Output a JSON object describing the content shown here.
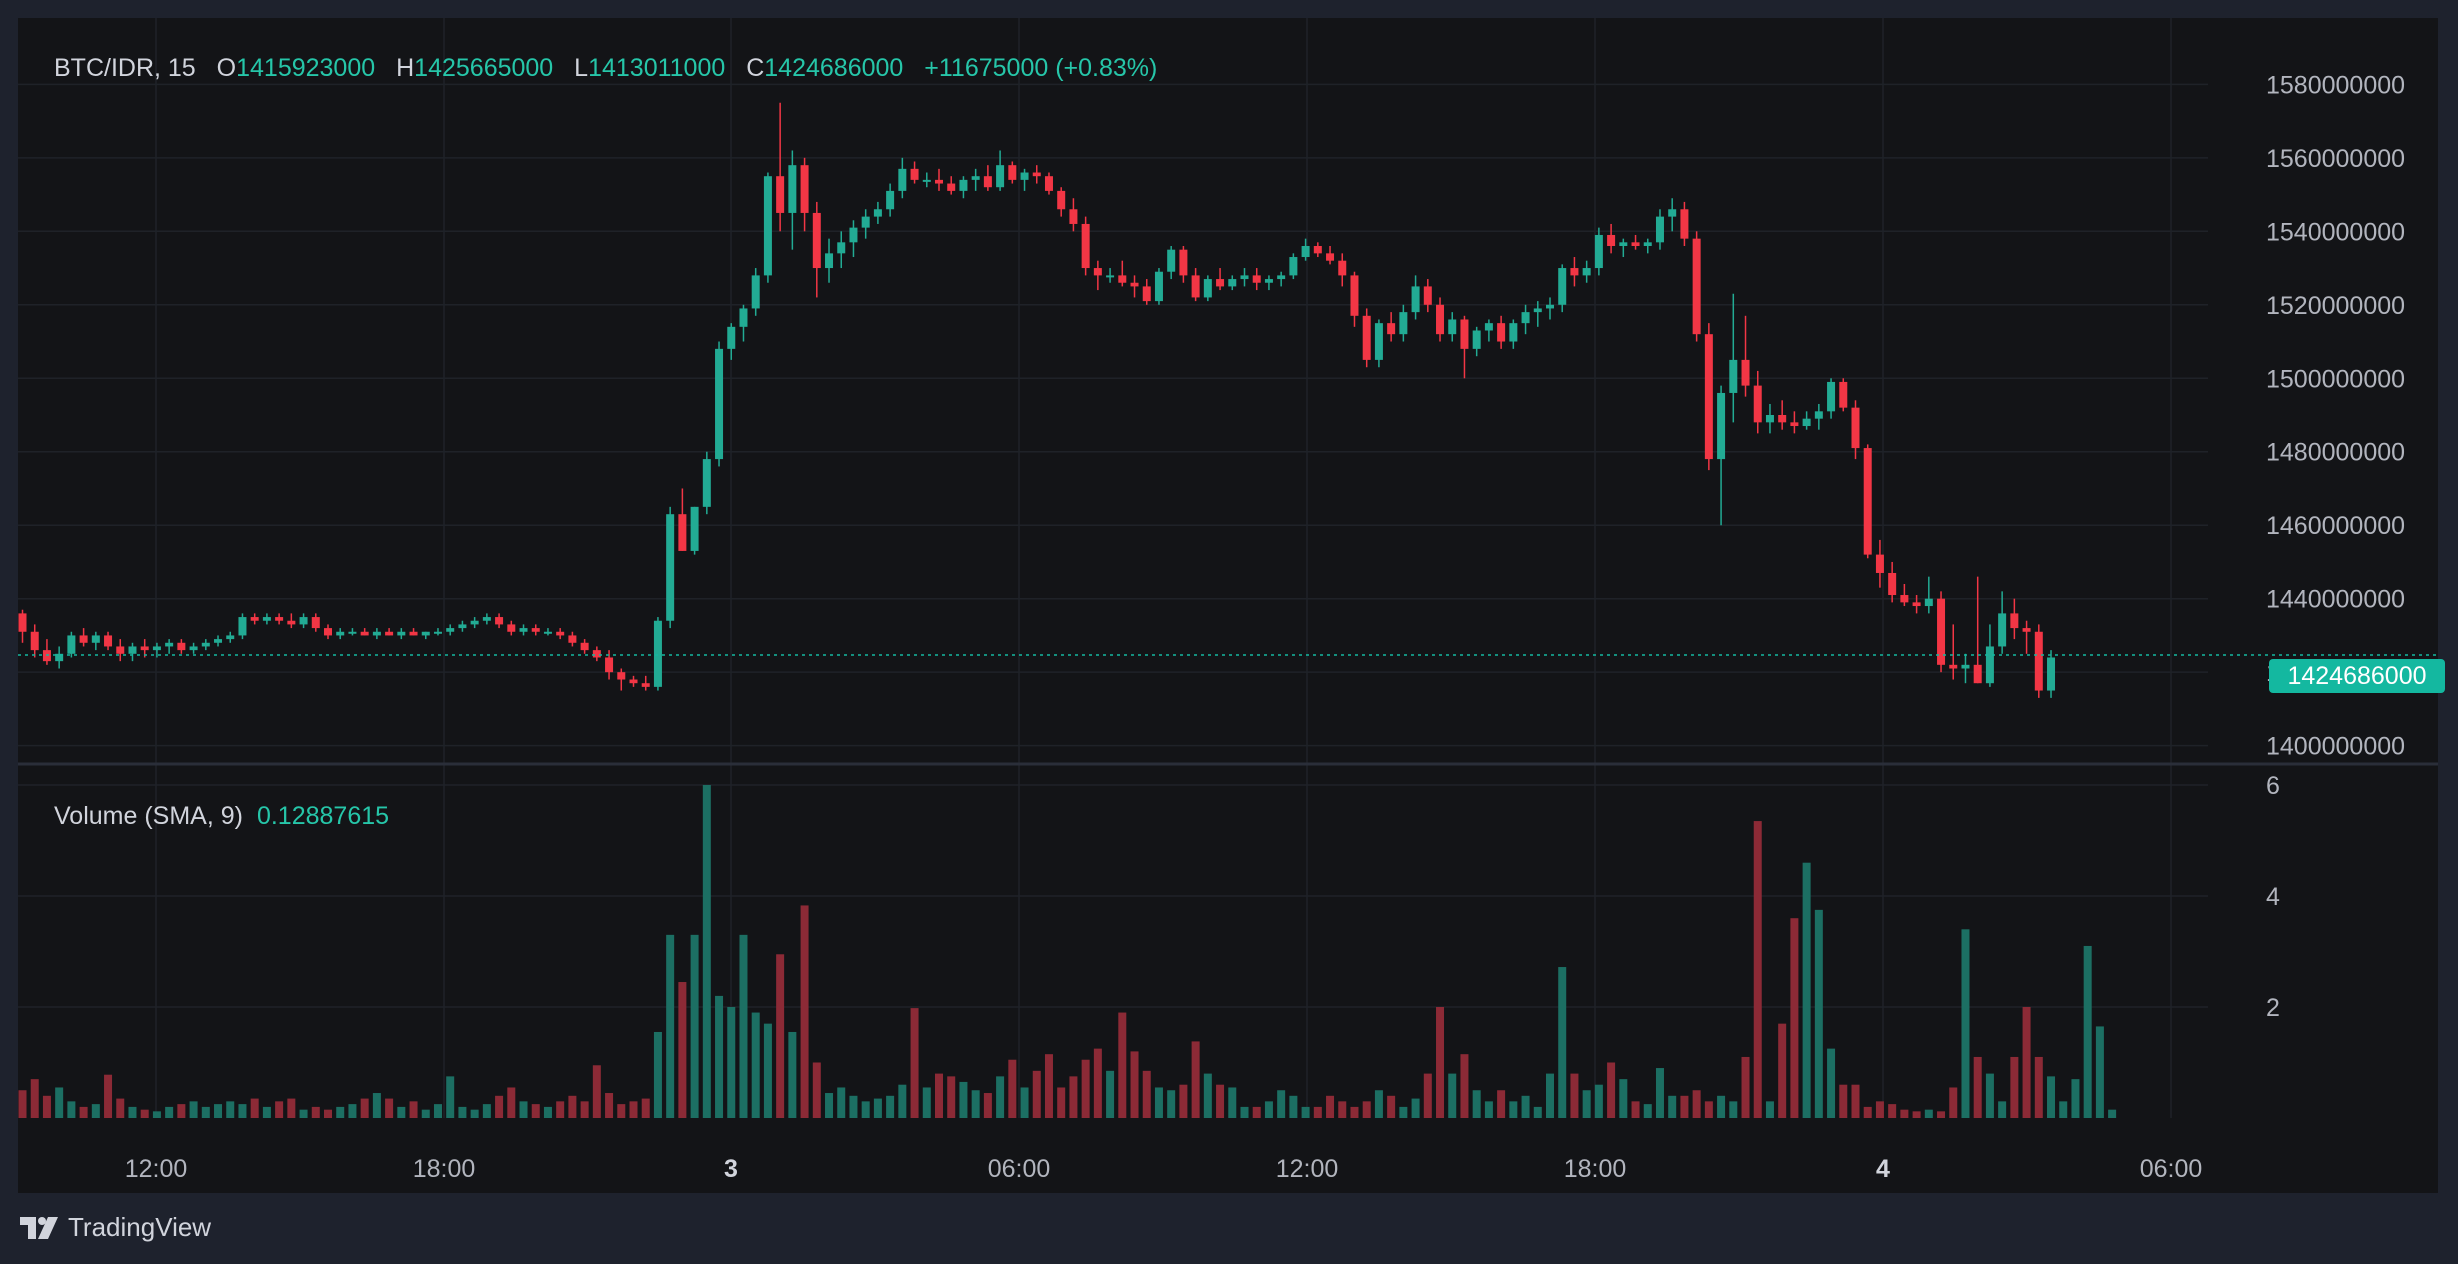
{
  "legend": {
    "symbol": "BTC/IDR, 15",
    "open_label": "O",
    "open": "1415923000",
    "high_label": "H",
    "high": "1425665000",
    "low_label": "L",
    "low": "1413011000",
    "close_label": "C",
    "close": "1424686000",
    "change": "+11675000 (+0.83%)"
  },
  "volume_legend": {
    "label": "Volume (SMA, 9)",
    "value": "0.12887615"
  },
  "last_price_label": "1424686000",
  "footer": {
    "brand": "TradingView"
  },
  "colors": {
    "up": "#22ab94",
    "down": "#f23645",
    "up_vol": "#1c6f63",
    "down_vol": "#8c2a36",
    "accent": "#14b8a0"
  },
  "chart_data": [
    {
      "type": "candlestick",
      "series_name": "BTC/IDR, 15",
      "y_ticks": [
        1400000000,
        1420000000,
        1440000000,
        1460000000,
        1480000000,
        1500000000,
        1520000000,
        1540000000,
        1560000000,
        1580000000
      ],
      "x_ticks": [
        "12:00",
        "18:00",
        "3",
        "06:00",
        "12:00",
        "18:00",
        "4",
        "06:00"
      ],
      "ylim": [
        1398000000,
        1582000000
      ],
      "last_price": 1424686000,
      "candles": [
        [
          1436,
          1437,
          1428,
          1431
        ],
        [
          1431,
          1433,
          1424,
          1426
        ],
        [
          1426,
          1429,
          1422,
          1423
        ],
        [
          1423,
          1427,
          1421,
          1425
        ],
        [
          1425,
          1431,
          1424,
          1430
        ],
        [
          1430,
          1432,
          1427,
          1428
        ],
        [
          1428,
          1431,
          1426,
          1430
        ],
        [
          1430,
          1431,
          1426,
          1427
        ],
        [
          1427,
          1429,
          1423,
          1425
        ],
        [
          1425,
          1428,
          1423,
          1427
        ],
        [
          1427,
          1429,
          1424,
          1426
        ],
        [
          1426,
          1428,
          1424,
          1427
        ],
        [
          1427,
          1429,
          1425,
          1428
        ],
        [
          1428,
          1429,
          1425,
          1426
        ],
        [
          1426,
          1428,
          1425,
          1427
        ],
        [
          1427,
          1429,
          1426,
          1428
        ],
        [
          1428,
          1430,
          1427,
          1429
        ],
        [
          1429,
          1431,
          1428,
          1430
        ],
        [
          1430,
          1436,
          1429,
          1435
        ],
        [
          1435,
          1436,
          1433,
          1434
        ],
        [
          1434,
          1436,
          1433,
          1435
        ],
        [
          1435,
          1436,
          1433,
          1434
        ],
        [
          1434,
          1436,
          1432,
          1433
        ],
        [
          1433,
          1436,
          1432,
          1435
        ],
        [
          1435,
          1436,
          1431,
          1432
        ],
        [
          1432,
          1433,
          1429,
          1430
        ],
        [
          1430,
          1432,
          1429,
          1431
        ],
        [
          1431,
          1432,
          1430,
          1431
        ],
        [
          1431,
          1432,
          1430,
          1430
        ],
        [
          1430,
          1432,
          1429,
          1431
        ],
        [
          1431,
          1432,
          1430,
          1430
        ],
        [
          1430,
          1432,
          1429,
          1431
        ],
        [
          1431,
          1432,
          1430,
          1430
        ],
        [
          1430,
          1431,
          1429,
          1431
        ],
        [
          1431,
          1432,
          1430,
          1431
        ],
        [
          1431,
          1433,
          1430,
          1432
        ],
        [
          1432,
          1434,
          1431,
          1433
        ],
        [
          1433,
          1435,
          1432,
          1434
        ],
        [
          1434,
          1436,
          1433,
          1435
        ],
        [
          1435,
          1436,
          1432,
          1433
        ],
        [
          1433,
          1434,
          1430,
          1431
        ],
        [
          1431,
          1433,
          1430,
          1432
        ],
        [
          1432,
          1433,
          1430,
          1431
        ],
        [
          1431,
          1432,
          1430,
          1431
        ],
        [
          1431,
          1432,
          1429,
          1430
        ],
        [
          1430,
          1431,
          1427,
          1428
        ],
        [
          1428,
          1429,
          1425,
          1426
        ],
        [
          1426,
          1427,
          1423,
          1424
        ],
        [
          1424,
          1426,
          1418,
          1420
        ],
        [
          1420,
          1421,
          1415,
          1418
        ],
        [
          1418,
          1419,
          1416,
          1417
        ],
        [
          1417,
          1419,
          1415,
          1416
        ],
        [
          1416,
          1435,
          1415,
          1434
        ],
        [
          1434,
          1465,
          1432,
          1463
        ],
        [
          1463,
          1470,
          1453,
          1453
        ],
        [
          1453,
          1465,
          1452,
          1465
        ],
        [
          1465,
          1480,
          1463,
          1478
        ],
        [
          1478,
          1510,
          1476,
          1508
        ],
        [
          1508,
          1515,
          1505,
          1514
        ],
        [
          1514,
          1520,
          1510,
          1519
        ],
        [
          1519,
          1530,
          1517,
          1528
        ],
        [
          1528,
          1556,
          1526,
          1555
        ],
        [
          1555,
          1575,
          1540,
          1545
        ],
        [
          1545,
          1562,
          1535,
          1558
        ],
        [
          1558,
          1560,
          1540,
          1545
        ],
        [
          1545,
          1548,
          1522,
          1530
        ],
        [
          1530,
          1538,
          1526,
          1534
        ],
        [
          1534,
          1540,
          1530,
          1537
        ],
        [
          1537,
          1543,
          1533,
          1541
        ],
        [
          1541,
          1546,
          1538,
          1544
        ],
        [
          1544,
          1548,
          1542,
          1546
        ],
        [
          1546,
          1553,
          1544,
          1551
        ],
        [
          1551,
          1560,
          1549,
          1557
        ],
        [
          1557,
          1559,
          1553,
          1554
        ],
        [
          1554,
          1556,
          1552,
          1554
        ],
        [
          1554,
          1557,
          1551,
          1553
        ],
        [
          1553,
          1555,
          1550,
          1551
        ],
        [
          1551,
          1555,
          1549,
          1554
        ],
        [
          1554,
          1557,
          1551,
          1555
        ],
        [
          1555,
          1558,
          1551,
          1552
        ],
        [
          1552,
          1562,
          1551,
          1558
        ],
        [
          1558,
          1559,
          1553,
          1554
        ],
        [
          1554,
          1557,
          1551,
          1556
        ],
        [
          1556,
          1558,
          1553,
          1555
        ],
        [
          1555,
          1556,
          1550,
          1551
        ],
        [
          1551,
          1552,
          1544,
          1546
        ],
        [
          1546,
          1549,
          1540,
          1542
        ],
        [
          1542,
          1544,
          1528,
          1530
        ],
        [
          1530,
          1532,
          1524,
          1528
        ],
        [
          1528,
          1530,
          1526,
          1528
        ],
        [
          1528,
          1532,
          1525,
          1526
        ],
        [
          1526,
          1528,
          1522,
          1525
        ],
        [
          1525,
          1527,
          1520,
          1521
        ],
        [
          1521,
          1530,
          1520,
          1529
        ],
        [
          1529,
          1536,
          1527,
          1535
        ],
        [
          1535,
          1536,
          1526,
          1528
        ],
        [
          1528,
          1530,
          1521,
          1522
        ],
        [
          1522,
          1528,
          1521,
          1527
        ],
        [
          1527,
          1530,
          1524,
          1525
        ],
        [
          1525,
          1528,
          1524,
          1527
        ],
        [
          1527,
          1530,
          1525,
          1528
        ],
        [
          1528,
          1530,
          1524,
          1526
        ],
        [
          1526,
          1528,
          1524,
          1527
        ],
        [
          1527,
          1529,
          1525,
          1528
        ],
        [
          1528,
          1534,
          1527,
          1533
        ],
        [
          1533,
          1538,
          1532,
          1536
        ],
        [
          1536,
          1537,
          1533,
          1534
        ],
        [
          1534,
          1536,
          1531,
          1532
        ],
        [
          1532,
          1534,
          1525,
          1528
        ],
        [
          1528,
          1529,
          1514,
          1517
        ],
        [
          1517,
          1519,
          1503,
          1505
        ],
        [
          1505,
          1516,
          1503,
          1515
        ],
        [
          1515,
          1518,
          1510,
          1512
        ],
        [
          1512,
          1520,
          1510,
          1518
        ],
        [
          1518,
          1528,
          1516,
          1525
        ],
        [
          1525,
          1527,
          1518,
          1520
        ],
        [
          1520,
          1522,
          1510,
          1512
        ],
        [
          1512,
          1518,
          1510,
          1516
        ],
        [
          1516,
          1517,
          1500,
          1508
        ],
        [
          1508,
          1514,
          1506,
          1513
        ],
        [
          1513,
          1516,
          1510,
          1515
        ],
        [
          1515,
          1517,
          1508,
          1510
        ],
        [
          1510,
          1516,
          1508,
          1515
        ],
        [
          1515,
          1520,
          1512,
          1518
        ],
        [
          1518,
          1521,
          1514,
          1519
        ],
        [
          1519,
          1522,
          1516,
          1520
        ],
        [
          1520,
          1531,
          1518,
          1530
        ],
        [
          1530,
          1533,
          1525,
          1528
        ],
        [
          1528,
          1532,
          1526,
          1530
        ],
        [
          1530,
          1541,
          1528,
          1539
        ],
        [
          1539,
          1542,
          1534,
          1536
        ],
        [
          1536,
          1538,
          1533,
          1537
        ],
        [
          1537,
          1539,
          1535,
          1536
        ],
        [
          1536,
          1538,
          1534,
          1537
        ],
        [
          1537,
          1546,
          1535,
          1544
        ],
        [
          1544,
          1549,
          1540,
          1546
        ],
        [
          1546,
          1548,
          1536,
          1538
        ],
        [
          1538,
          1540,
          1510,
          1512
        ],
        [
          1512,
          1515,
          1475,
          1478
        ],
        [
          1478,
          1498,
          1460,
          1496
        ],
        [
          1496,
          1523,
          1488,
          1505
        ],
        [
          1505,
          1517,
          1495,
          1498
        ],
        [
          1498,
          1502,
          1485,
          1488
        ],
        [
          1488,
          1493,
          1485,
          1490
        ],
        [
          1490,
          1494,
          1486,
          1488
        ],
        [
          1488,
          1491,
          1485,
          1487
        ],
        [
          1487,
          1491,
          1486,
          1489
        ],
        [
          1489,
          1493,
          1486,
          1491
        ],
        [
          1491,
          1500,
          1489,
          1499
        ],
        [
          1499,
          1500,
          1491,
          1492
        ],
        [
          1492,
          1494,
          1478,
          1481
        ],
        [
          1481,
          1482,
          1451,
          1452
        ],
        [
          1452,
          1456,
          1443,
          1447
        ],
        [
          1447,
          1450,
          1439,
          1441
        ],
        [
          1441,
          1444,
          1438,
          1439
        ],
        [
          1439,
          1441,
          1436,
          1438
        ],
        [
          1438,
          1446,
          1436,
          1440
        ],
        [
          1440,
          1442,
          1420,
          1422
        ],
        [
          1422,
          1433,
          1418,
          1421
        ],
        [
          1421,
          1425,
          1417,
          1422
        ],
        [
          1422,
          1446,
          1417,
          1417
        ],
        [
          1417,
          1433,
          1416,
          1427
        ],
        [
          1427,
          1442,
          1425,
          1436
        ],
        [
          1436,
          1440,
          1429,
          1432
        ],
        [
          1432,
          1434,
          1425,
          1431
        ],
        [
          1431,
          1433,
          1413,
          1415
        ],
        [
          1415,
          1426,
          1413,
          1424
        ]
      ]
    },
    {
      "type": "bar",
      "series_name": "Volume (SMA, 9)",
      "y_ticks": [
        2,
        4,
        6
      ],
      "ylim": [
        0,
        6.06
      ],
      "volumes": [
        0.5,
        0.7,
        0.4,
        0.55,
        0.3,
        0.2,
        0.25,
        0.78,
        0.35,
        0.2,
        0.15,
        0.12,
        0.2,
        0.25,
        0.3,
        0.2,
        0.25,
        0.3,
        0.25,
        0.35,
        0.2,
        0.3,
        0.35,
        0.15,
        0.2,
        0.15,
        0.2,
        0.25,
        0.35,
        0.45,
        0.35,
        0.2,
        0.3,
        0.15,
        0.25,
        0.75,
        0.2,
        0.15,
        0.25,
        0.4,
        0.55,
        0.3,
        0.25,
        0.2,
        0.3,
        0.4,
        0.3,
        0.95,
        0.45,
        0.25,
        0.3,
        0.35,
        1.55,
        3.3,
        2.45,
        3.3,
        6.0,
        2.2,
        2.0,
        3.3,
        1.9,
        1.7,
        2.95,
        1.55,
        3.83,
        1.0,
        0.45,
        0.55,
        0.4,
        0.3,
        0.35,
        0.4,
        0.6,
        1.98,
        0.55,
        0.8,
        0.75,
        0.65,
        0.5,
        0.45,
        0.75,
        1.05,
        0.55,
        0.85,
        1.15,
        0.55,
        0.75,
        1.05,
        1.25,
        0.85,
        1.9,
        1.2,
        0.85,
        0.55,
        0.5,
        0.6,
        1.38,
        0.8,
        0.6,
        0.55,
        0.2,
        0.2,
        0.3,
        0.5,
        0.4,
        0.2,
        0.2,
        0.4,
        0.3,
        0.2,
        0.3,
        0.5,
        0.4,
        0.2,
        0.35,
        0.8,
        2.0,
        0.8,
        1.15,
        0.5,
        0.3,
        0.5,
        0.3,
        0.4,
        0.2,
        0.8,
        2.72,
        0.8,
        0.5,
        0.6,
        1.0,
        0.7,
        0.3,
        0.25,
        0.9,
        0.4,
        0.4,
        0.5,
        0.3,
        0.4,
        0.3,
        1.1,
        5.35,
        0.3,
        1.7,
        3.6,
        4.6,
        3.75,
        1.25,
        0.6,
        0.6,
        0.2,
        0.3,
        0.25,
        0.15,
        0.12,
        0.15,
        0.12,
        0.55,
        3.4,
        1.1,
        0.8,
        0.3,
        1.1,
        2.0,
        1.1,
        0.75,
        0.3,
        0.7,
        3.1,
        1.65,
        0.15
      ]
    }
  ]
}
